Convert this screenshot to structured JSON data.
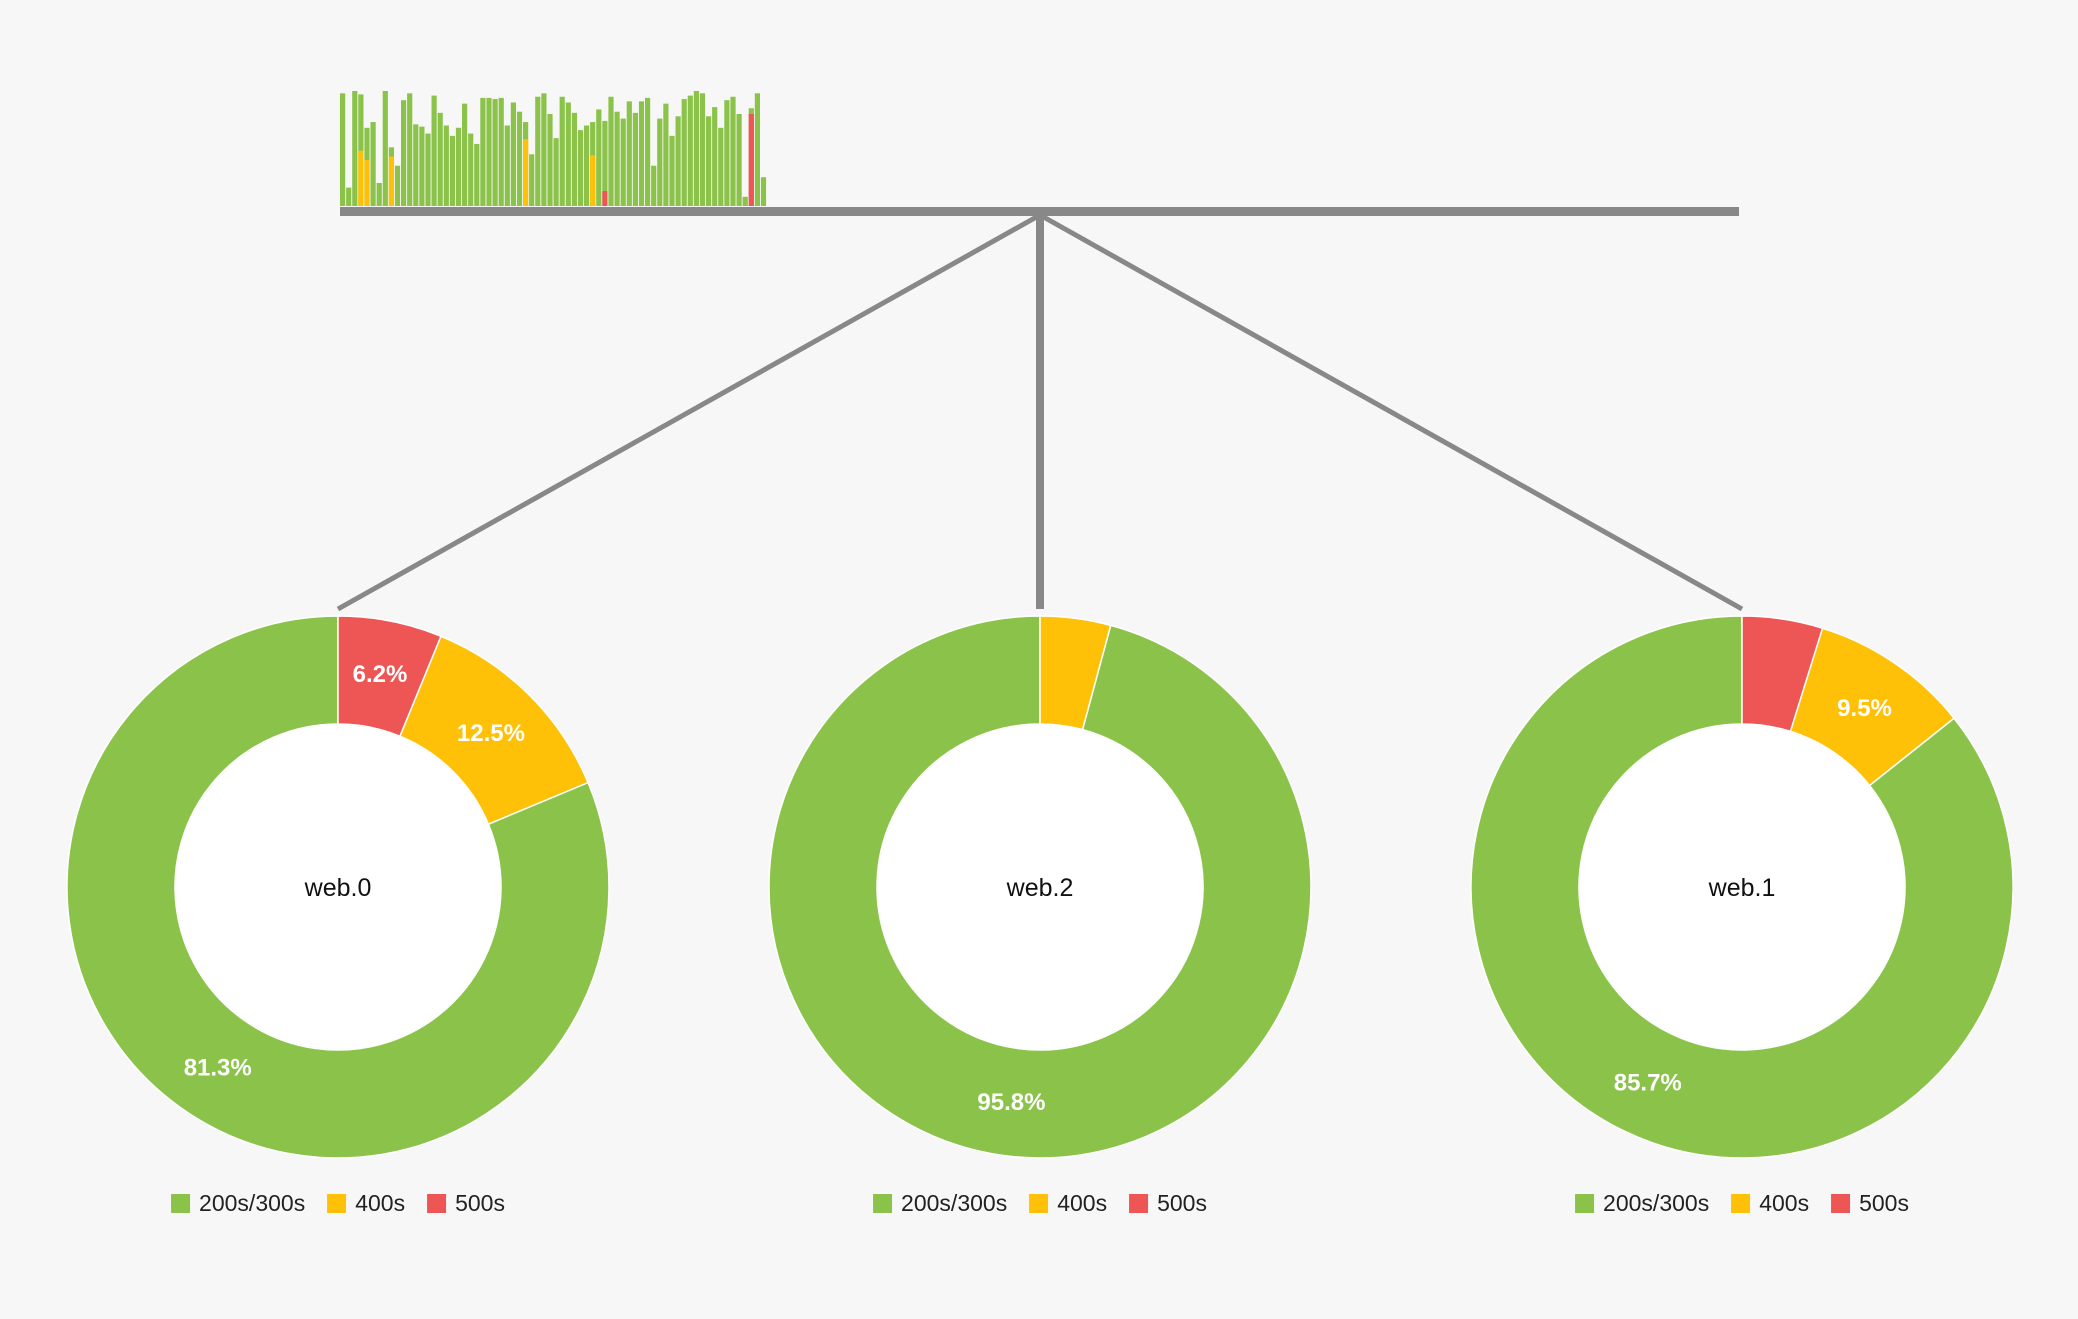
{
  "colors": {
    "ok": "#8bc34a",
    "client_error": "#ffc107",
    "server_error": "#ee5555",
    "connector": "#888888",
    "background": "#f7f7f7"
  },
  "chart_data": [
    {
      "type": "bar",
      "title": "",
      "categories_count": 70,
      "series": [
        {
          "key": "ok",
          "values": [
            0.98,
            0.16,
            1.0,
            0.97,
            0.68,
            0.73,
            0.2,
            1.0,
            0.51,
            0.35,
            0.92,
            0.98,
            0.71,
            0.69,
            0.63,
            0.96,
            0.81,
            0.7,
            0.61,
            0.68,
            0.89,
            0.63,
            0.54,
            0.94,
            0.94,
            0.93,
            0.94,
            0.7,
            0.9,
            0.82,
            0.73,
            0.45,
            0.95,
            0.98,
            0.8,
            0.59,
            0.95,
            0.9,
            0.81,
            0.66,
            0.7,
            0.73,
            0.84,
            0.74,
            0.95,
            0.82,
            0.76,
            0.91,
            0.81,
            0.91,
            0.94,
            0.35,
            0.76,
            0.89,
            0.61,
            0.78,
            0.93,
            0.96,
            1.0,
            0.98,
            0.78,
            0.86,
            0.68,
            0.92,
            0.95,
            0.8,
            0.08,
            0.85,
            0.98,
            0.25
          ]
        },
        {
          "key": "client_error",
          "values": [
            0,
            0,
            0,
            0.48,
            0.4,
            0,
            0,
            0,
            0.43,
            0,
            0,
            0,
            0,
            0,
            0,
            0,
            0,
            0,
            0,
            0,
            0,
            0,
            0,
            0,
            0,
            0,
            0,
            0,
            0,
            0,
            0.58,
            0,
            0,
            0,
            0,
            0,
            0,
            0,
            0,
            0,
            0,
            0.44,
            0,
            0,
            0,
            0,
            0,
            0,
            0,
            0,
            0,
            0,
            0,
            0,
            0,
            0,
            0,
            0,
            0,
            0,
            0,
            0,
            0,
            0,
            0,
            0,
            0,
            0,
            0,
            0
          ]
        },
        {
          "key": "server_error",
          "values": [
            0,
            0,
            0,
            0,
            0,
            0,
            0,
            0,
            0,
            0,
            0,
            0,
            0,
            0,
            0,
            0,
            0,
            0,
            0,
            0,
            0,
            0,
            0,
            0,
            0,
            0,
            0,
            0,
            0,
            0,
            0,
            0,
            0,
            0,
            0,
            0,
            0,
            0,
            0,
            0,
            0,
            0,
            0,
            0.13,
            0,
            0,
            0,
            0,
            0,
            0,
            0,
            0,
            0,
            0,
            0,
            0,
            0,
            0,
            0,
            0,
            0,
            0,
            0,
            0,
            0,
            0,
            0,
            0.8,
            0,
            0
          ]
        }
      ]
    },
    {
      "type": "pie",
      "center_label": "web.0",
      "slices": [
        {
          "key": "ok",
          "value": 81.3,
          "label": "81.3%"
        },
        {
          "key": "client_error",
          "value": 12.5,
          "label": "12.5%"
        },
        {
          "key": "server_error",
          "value": 6.2,
          "label": "6.2%"
        }
      ],
      "legend": [
        "200s/300s",
        "400s",
        "500s"
      ]
    },
    {
      "type": "pie",
      "center_label": "web.2",
      "slices": [
        {
          "key": "ok",
          "value": 95.8,
          "label": "95.8%"
        },
        {
          "key": "client_error",
          "value": 4.2,
          "label": ""
        },
        {
          "key": "server_error",
          "value": 0,
          "label": ""
        }
      ],
      "legend": [
        "200s/300s",
        "400s",
        "500s"
      ]
    },
    {
      "type": "pie",
      "center_label": "web.1",
      "slices": [
        {
          "key": "ok",
          "value": 85.7,
          "label": "85.7%"
        },
        {
          "key": "client_error",
          "value": 9.5,
          "label": "9.5%"
        },
        {
          "key": "server_error",
          "value": 4.8,
          "label": ""
        }
      ],
      "legend": [
        "200s/300s",
        "400s",
        "500s"
      ]
    }
  ]
}
